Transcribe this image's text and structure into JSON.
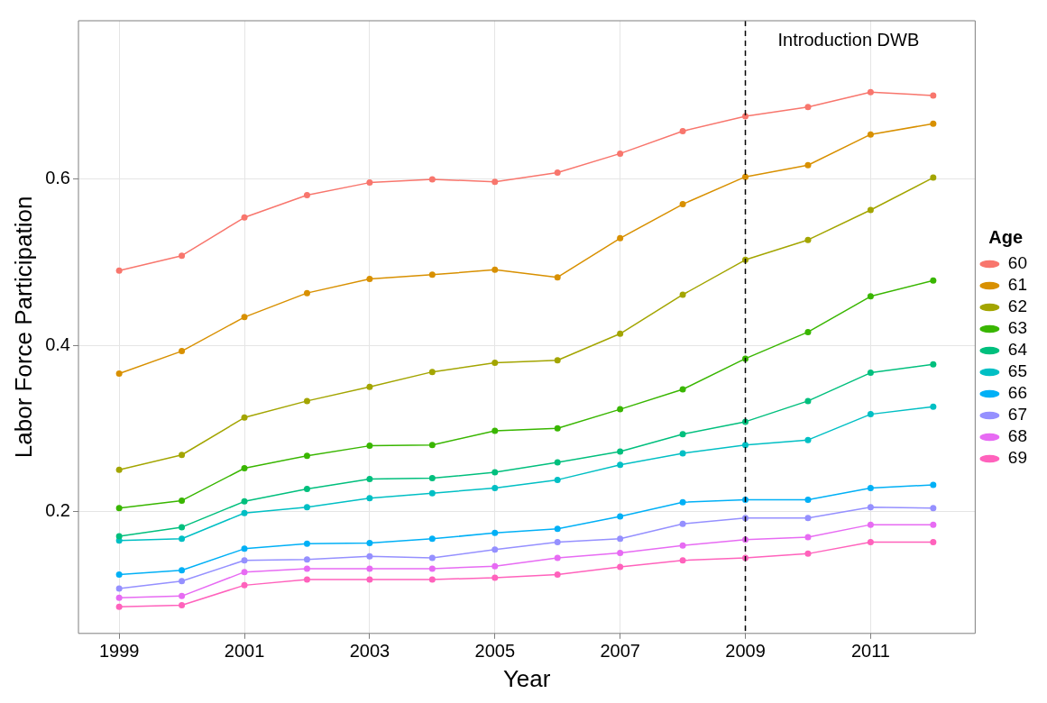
{
  "chart_data": {
    "type": "line",
    "xlabel": "Year",
    "ylabel": "Labor Force Participation",
    "legend_title": "Age",
    "x": [
      1999,
      2000,
      2001,
      2002,
      2003,
      2004,
      2005,
      2006,
      2007,
      2008,
      2009,
      2010,
      2011,
      2012
    ],
    "series": [
      {
        "name": "60",
        "color": "#f8766d",
        "values": [
          0.49,
          0.508,
          0.554,
          0.581,
          0.596,
          0.6,
          0.597,
          0.608,
          0.631,
          0.658,
          0.676,
          0.687,
          0.705,
          0.701
        ]
      },
      {
        "name": "61",
        "color": "#d89000",
        "values": [
          0.366,
          0.393,
          0.434,
          0.463,
          0.48,
          0.485,
          0.491,
          0.482,
          0.529,
          0.57,
          0.603,
          0.617,
          0.654,
          0.667
        ]
      },
      {
        "name": "62",
        "color": "#a3a500",
        "values": [
          0.25,
          0.268,
          0.313,
          0.333,
          0.35,
          0.368,
          0.379,
          0.382,
          0.414,
          0.461,
          0.503,
          0.527,
          0.563,
          0.602
        ]
      },
      {
        "name": "63",
        "color": "#39b600",
        "values": [
          0.204,
          0.213,
          0.252,
          0.267,
          0.279,
          0.28,
          0.297,
          0.3,
          0.323,
          0.347,
          0.384,
          0.416,
          0.459,
          0.478
        ]
      },
      {
        "name": "64",
        "color": "#00bf7d",
        "values": [
          0.17,
          0.181,
          0.212,
          0.227,
          0.239,
          0.24,
          0.247,
          0.259,
          0.272,
          0.293,
          0.308,
          0.333,
          0.367,
          0.377
        ]
      },
      {
        "name": "65",
        "color": "#00bfc4",
        "values": [
          0.165,
          0.167,
          0.198,
          0.205,
          0.216,
          0.222,
          0.228,
          0.238,
          0.256,
          0.27,
          0.28,
          0.286,
          0.317,
          0.326
        ]
      },
      {
        "name": "66",
        "color": "#00b0f6",
        "values": [
          0.124,
          0.129,
          0.155,
          0.161,
          0.162,
          0.167,
          0.174,
          0.179,
          0.194,
          0.211,
          0.214,
          0.214,
          0.228,
          0.232
        ]
      },
      {
        "name": "67",
        "color": "#9590ff",
        "values": [
          0.107,
          0.116,
          0.141,
          0.142,
          0.146,
          0.144,
          0.154,
          0.163,
          0.167,
          0.185,
          0.192,
          0.192,
          0.205,
          0.204
        ]
      },
      {
        "name": "68",
        "color": "#e76bf3",
        "values": [
          0.096,
          0.098,
          0.127,
          0.131,
          0.131,
          0.131,
          0.134,
          0.144,
          0.15,
          0.159,
          0.166,
          0.169,
          0.184,
          0.184
        ]
      },
      {
        "name": "69",
        "color": "#ff62bc",
        "values": [
          0.085,
          0.087,
          0.111,
          0.118,
          0.118,
          0.118,
          0.12,
          0.124,
          0.133,
          0.141,
          0.144,
          0.149,
          0.163,
          0.163
        ]
      }
    ],
    "xlim": [
      1998.35,
      2012.67
    ],
    "xticks": [
      1999,
      2001,
      2003,
      2005,
      2007,
      2009,
      2011
    ],
    "ylim": [
      0.053,
      0.791
    ],
    "yticks": [
      0.2,
      0.4,
      0.6
    ],
    "ref_lines": [
      {
        "axis": "x",
        "value": 2009,
        "label": "Introduction DWB",
        "color": "#000000",
        "line_style": "dashed"
      }
    ],
    "grid": true,
    "legend": "right",
    "marker": "circle",
    "line_style": "solid"
  }
}
